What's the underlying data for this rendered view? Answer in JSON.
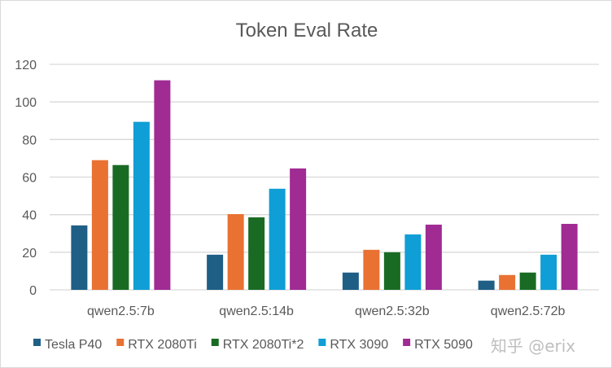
{
  "chart_data": {
    "type": "bar",
    "title": "Token Eval Rate",
    "xlabel": "",
    "ylabel": "",
    "ylim": [
      0,
      120
    ],
    "yticks": [
      0,
      20,
      40,
      60,
      80,
      100,
      120
    ],
    "grid": true,
    "legend_position": "bottom",
    "categories": [
      "qwen2.5:7b",
      "qwen2.5:14b",
      "qwen2.5:32b",
      "qwen2.5:72b"
    ],
    "series": [
      {
        "name": "Tesla P40",
        "color": "#1f5f86",
        "values": [
          34.3,
          18.7,
          9.2,
          4.9
        ]
      },
      {
        "name": "RTX 2080Ti",
        "color": "#e97132",
        "values": [
          69.0,
          40.3,
          21.3,
          7.9
        ]
      },
      {
        "name": "RTX 2080Ti*2",
        "color": "#196b24",
        "values": [
          66.4,
          38.6,
          20.0,
          9.2
        ]
      },
      {
        "name": "RTX 3090",
        "color": "#0f9ed5",
        "values": [
          89.4,
          53.8,
          29.5,
          18.7
        ]
      },
      {
        "name": "RTX 5090",
        "color": "#a02b93",
        "values": [
          111.5,
          64.6,
          34.7,
          35.1
        ]
      }
    ]
  },
  "watermark": "知乎 @erix"
}
